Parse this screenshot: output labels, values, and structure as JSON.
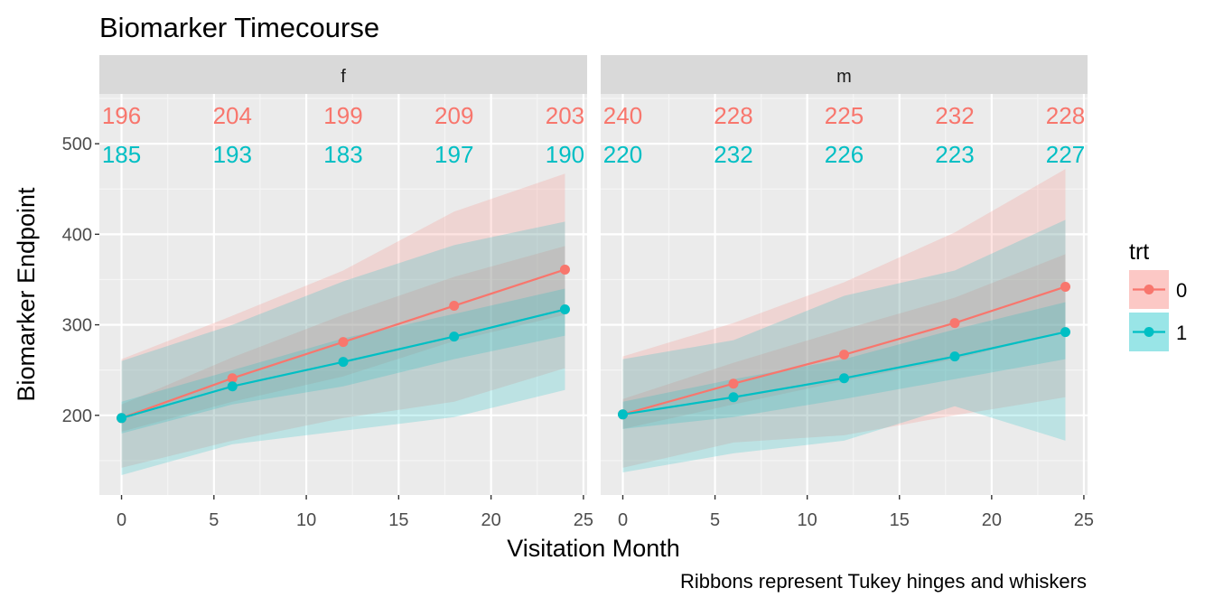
{
  "chart_data": {
    "type": "line",
    "title": "Biomarker Timecourse",
    "xlabel": "Visitation Month",
    "ylabel": "Biomarker Endpoint",
    "caption": "Ribbons represent Tukey hinges and whiskers",
    "xlim": [
      -1.2,
      25.2
    ],
    "ylim": [
      112,
      555
    ],
    "x_ticks": [
      0,
      5,
      10,
      15,
      20,
      25
    ],
    "y_ticks": [
      200,
      300,
      400,
      500
    ],
    "legend": {
      "title": "trt",
      "position": "right",
      "entries": [
        {
          "label": "0",
          "color": "#F8766D"
        },
        {
          "label": "1",
          "color": "#00BFC4"
        }
      ]
    },
    "x": [
      0,
      6,
      12,
      18,
      24
    ],
    "panels": [
      {
        "label": "f",
        "series": [
          {
            "name": "0",
            "color": "#F8766D",
            "median": [
              197,
              241,
              281,
              321,
              361
            ],
            "lower_hinge": [
              182,
              215,
              243,
              282,
              311
            ],
            "upper_hinge": [
              212,
              264,
              311,
              353,
              387
            ],
            "lower_whisker": [
              142,
              172,
              197,
              215,
              252
            ],
            "upper_whisker": [
              262,
              310,
              360,
              425,
              467
            ],
            "counts": [
              "196",
              "204",
              "199",
              "209",
              "203"
            ]
          },
          {
            "name": "1",
            "color": "#00BFC4",
            "median": [
              197,
              232,
              259,
              287,
              317
            ],
            "lower_hinge": [
              180,
              212,
              232,
              262,
              288
            ],
            "upper_hinge": [
              215,
              250,
              285,
              312,
              340
            ],
            "lower_whisker": [
              134,
              168,
              183,
              198,
              228
            ],
            "upper_whisker": [
              260,
              300,
              348,
              388,
              414
            ],
            "counts": [
              "185",
              "193",
              "183",
              "197",
              "190"
            ]
          }
        ]
      },
      {
        "label": "m",
        "series": [
          {
            "name": "0",
            "color": "#F8766D",
            "median": [
              201,
              235,
              267,
              302,
              342
            ],
            "lower_hinge": [
              185,
              212,
              238,
              262,
              292
            ],
            "upper_hinge": [
              218,
              258,
              295,
              330,
              378
            ],
            "lower_whisker": [
              142,
              170,
              178,
              200,
              220
            ],
            "upper_whisker": [
              265,
              302,
              347,
              402,
              472
            ],
            "counts": [
              "240",
              "228",
              "225",
              "232",
              "228"
            ]
          },
          {
            "name": "1",
            "color": "#00BFC4",
            "median": [
              201,
              220,
              241,
              265,
              292
            ],
            "lower_hinge": [
              185,
              198,
              218,
              240,
              262
            ],
            "upper_hinge": [
              215,
              240,
              262,
              295,
              325
            ],
            "lower_whisker": [
              137,
              158,
              172,
              210,
              172
            ],
            "upper_whisker": [
              262,
              283,
              332,
              360,
              416
            ],
            "counts": [
              "220",
              "232",
              "226",
              "223",
              "227"
            ]
          }
        ]
      }
    ]
  }
}
